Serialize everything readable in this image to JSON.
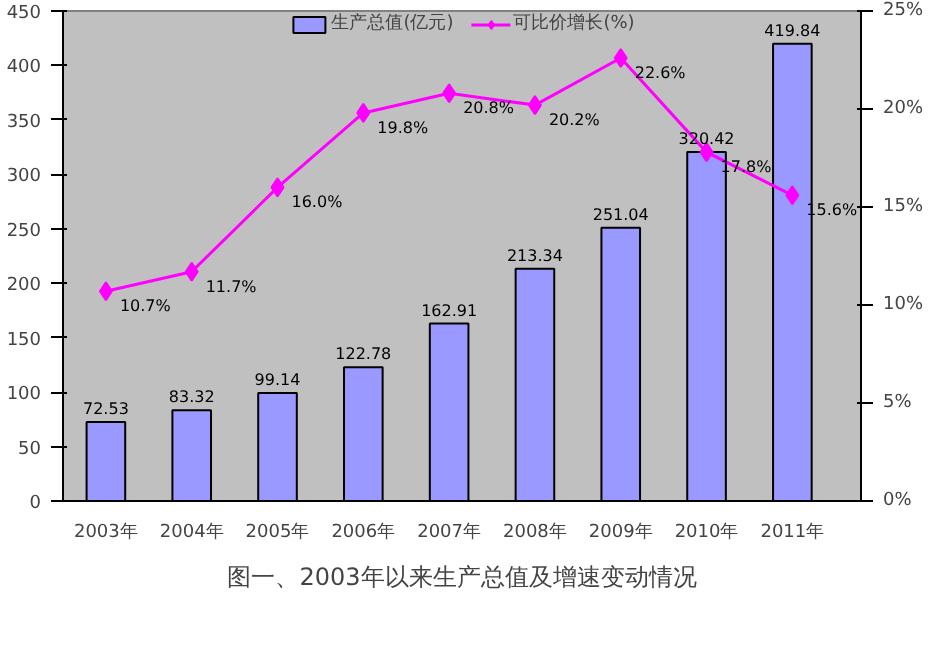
{
  "chart_data": {
    "type": "bar",
    "title": "图一、2003年以来生产总值及增速变动情况",
    "categories": [
      "2003年",
      "2004年",
      "2005年",
      "2006年",
      "2007年",
      "2008年",
      "2009年",
      "2010年",
      "2011年"
    ],
    "series": [
      {
        "name": "生产总值(亿元)",
        "color": "#9999ff",
        "values": [
          72.53,
          83.32,
          99.14,
          122.78,
          162.91,
          213.34,
          251.04,
          320.42,
          419.84
        ],
        "value_labels": [
          "72.53",
          "83.32",
          "99.14",
          "122.78",
          "162.91",
          "213.34",
          "251.04",
          "320.42",
          "419.84"
        ]
      },
      {
        "name": "可比价增长(%)",
        "type": "line",
        "axis": "y2",
        "color": "#ff00ff",
        "marker": "diamond",
        "values": [
          10.7,
          11.7,
          16.0,
          19.8,
          20.8,
          20.2,
          22.6,
          17.8,
          15.6
        ],
        "value_labels": [
          "10.7%",
          "11.7%",
          "16.0%",
          "19.8%",
          "20.8%",
          "20.2%",
          "22.6%",
          "17.8%",
          "15.6%"
        ]
      }
    ],
    "ylim": [
      0,
      450
    ],
    "yticks": [
      0,
      50,
      100,
      150,
      200,
      250,
      300,
      350,
      400,
      450
    ],
    "y2lim": [
      0,
      25
    ],
    "y2ticks": [
      {
        "value": 0,
        "label": "0%"
      },
      {
        "value": 5,
        "label": "5%"
      },
      {
        "value": 10,
        "label": "10%"
      },
      {
        "value": 15,
        "label": "15%"
      },
      {
        "value": 20,
        "label": "20%"
      },
      {
        "value": 25,
        "label": "25%"
      }
    ],
    "grid": false,
    "legend": "top"
  }
}
